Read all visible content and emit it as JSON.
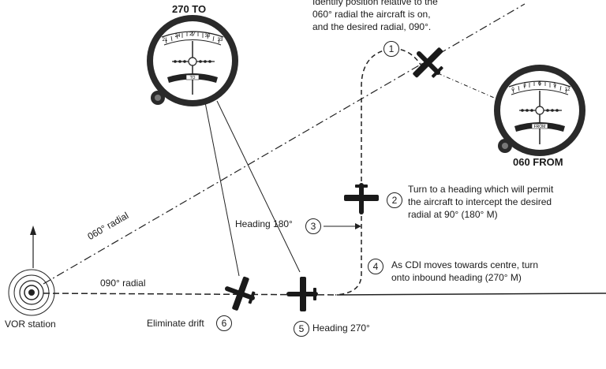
{
  "instruments": {
    "top_left": {
      "label": "270 TO",
      "ticks": [
        "21",
        "24",
        "27",
        "30",
        "33"
      ],
      "flag": "TO"
    },
    "right": {
      "label": "060 FROM",
      "ticks": [
        "0",
        "3",
        "6",
        "9",
        "12"
      ],
      "flag": "FROM"
    }
  },
  "notes": {
    "step1": "Identify position relative to the 060° radial the aircraft is on, and the desired radial, 090°.",
    "step1_lines": [
      "Identify position relative to the",
      "060° radial the aircraft is on,",
      "and the desired radial, 090°."
    ],
    "step2_lines": [
      "Turn to a heading which will permit",
      "the aircraft to intercept the desired",
      "radial at 90° (180° M)"
    ],
    "step3": "Heading 180°",
    "step4_lines": [
      "As CDI moves towards centre, turn",
      "onto inbound heading (270° M)"
    ],
    "step5": "Heading 270°",
    "step6": "Eliminate drift"
  },
  "steps": [
    "1",
    "2",
    "3",
    "4",
    "5",
    "6"
  ],
  "radials": {
    "r060": "060° radial",
    "r090": "090° radial"
  },
  "station": {
    "label": "VOR station"
  },
  "colors": {
    "ink": "#1a1a1a",
    "background": "#ffffff"
  }
}
